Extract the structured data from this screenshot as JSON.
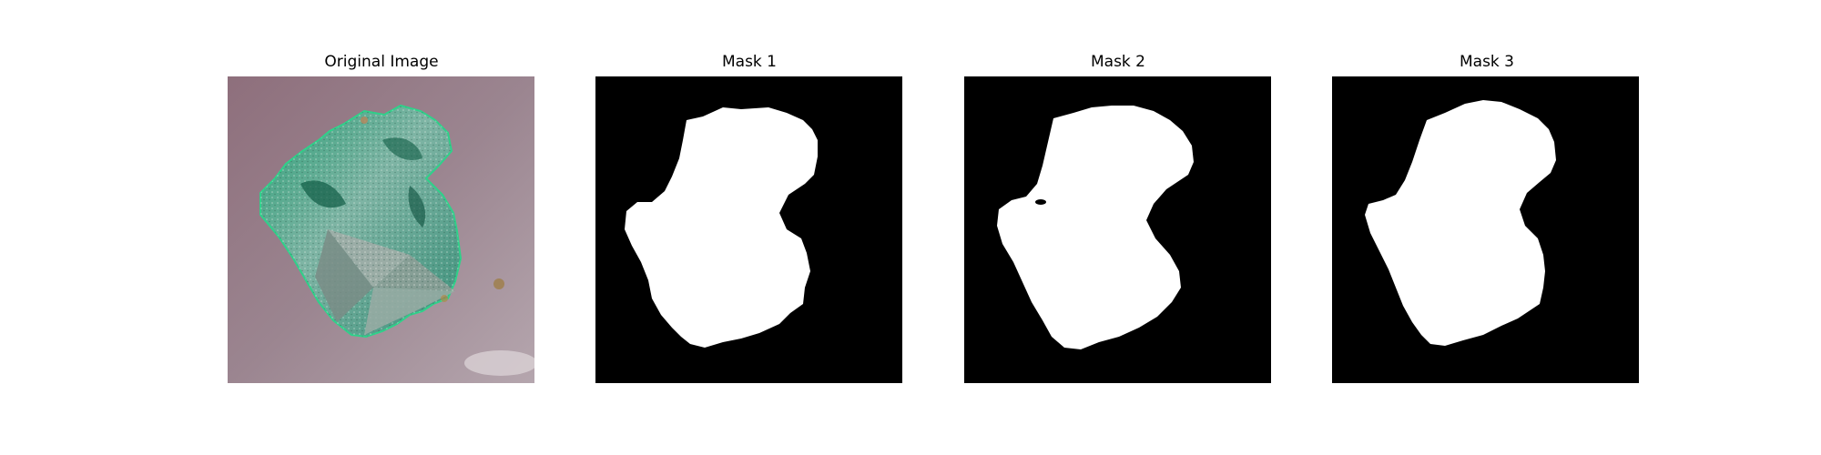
{
  "panels": [
    {
      "title": "Original Image"
    },
    {
      "title": "Mask 1"
    },
    {
      "title": "Mask 2"
    },
    {
      "title": "Mask 3"
    }
  ],
  "colors": {
    "background_surface": "#8b7580",
    "leaf_green": "#1f9e72",
    "leaf_gray": "#8fa8a0",
    "mask_background": "#000000",
    "mask_foreground": "#ffffff"
  }
}
